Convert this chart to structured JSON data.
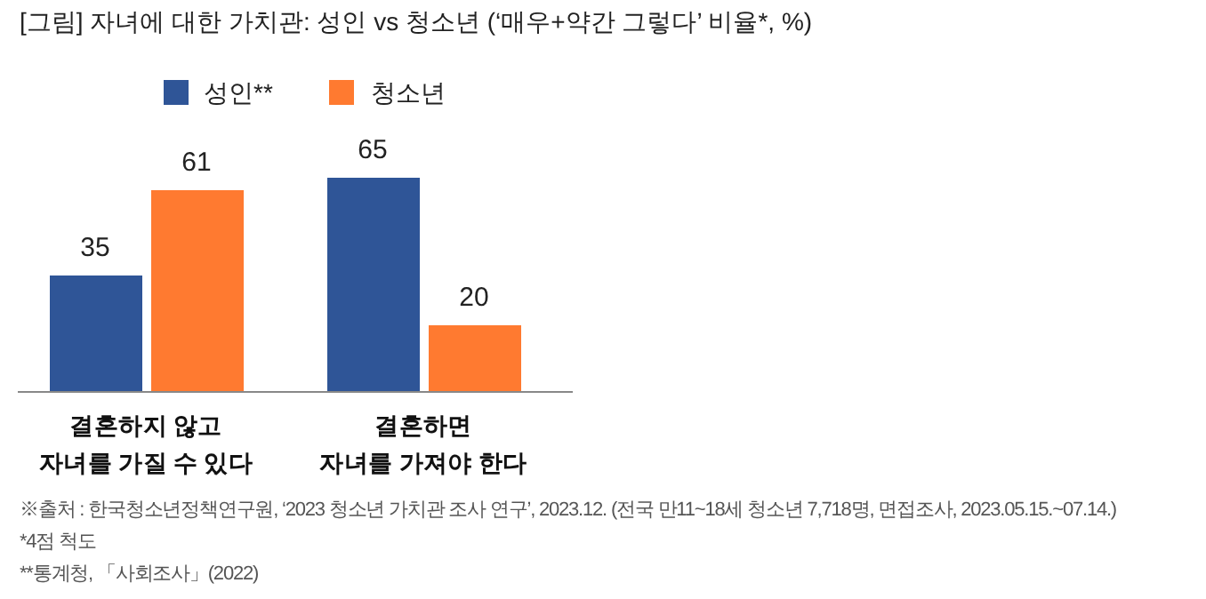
{
  "chart_data": {
    "type": "bar",
    "title": "[그림] 자녀에 대한 가치관: 성인 vs 청소년 (‘매우+약간 그렇다’ 비율*, %)",
    "categories": [
      "결혼하지 않고\n자녀를 가질 수 있다",
      "결혼하면\n자녀를 가져야 한다"
    ],
    "series": [
      {
        "name": "성인**",
        "color": "#2f5597",
        "values": [
          35,
          65
        ]
      },
      {
        "name": "청소년",
        "color": "#ff7a30",
        "values": [
          61,
          20
        ]
      }
    ],
    "data_labels": true,
    "legend": "top",
    "annotations": [
      "※출처 : 한국청소년정책연구원, ‘2023 청소년 가치관 조사 연구’, 2023.12. (전국 만11~18세 청소년 7,718명, 면접조사, 2023.05.15.~07.14.)",
      "*4점 척도",
      "**통계청, 「사회조사」(2022)"
    ]
  }
}
